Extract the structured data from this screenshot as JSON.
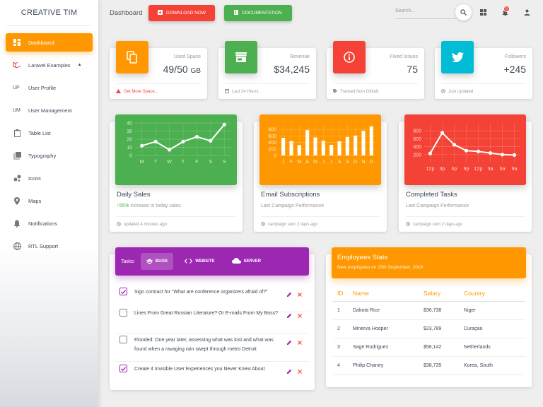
{
  "sidebar": {
    "brand": "CREATIVE TIM",
    "items": [
      {
        "label": "Dashboard",
        "icon": "dashboard-icon"
      },
      {
        "label": "Laravel Examples",
        "icon": "laravel-icon"
      },
      {
        "abbr": "UP",
        "label": "User Profile"
      },
      {
        "abbr": "UM",
        "label": "User Management"
      },
      {
        "label": "Table List",
        "icon": "clipboard-icon"
      },
      {
        "label": "Typography",
        "icon": "library-icon"
      },
      {
        "label": "Icons",
        "icon": "bubble-icon"
      },
      {
        "label": "Maps",
        "icon": "location-icon"
      },
      {
        "label": "Notifications",
        "icon": "bell-icon"
      },
      {
        "label": "RTL Support",
        "icon": "language-icon"
      }
    ]
  },
  "header": {
    "breadcrumb": "Dashboard",
    "download_label": "DOWNLOAD NOW",
    "docs_label": "DOCUMENTATION",
    "search_placeholder": "Search...",
    "notification_count": "5"
  },
  "stats": [
    {
      "category": "Used Space",
      "value": "49/50",
      "unit": "GB",
      "footer": "Get More Space...",
      "icon": "content-copy-icon",
      "color": "#ff9800"
    },
    {
      "category": "Revenue",
      "value": "$34,245",
      "footer": "Last 24 Hours",
      "icon": "store-icon",
      "color": "#4caf50"
    },
    {
      "category": "Fixed Issues",
      "value": "75",
      "footer": "Tracked from Github",
      "icon": "info-icon",
      "color": "#f44336"
    },
    {
      "category": "Followers",
      "value": "+245",
      "footer": "Just Updated",
      "icon": "twitter-icon",
      "color": "#00bcd4"
    }
  ],
  "charts": [
    {
      "title": "Daily Sales",
      "subtitle_pct": "55%",
      "subtitle_rest": " increase in today sales.",
      "footer": "updated 4 minutes ago",
      "color": "#4caf50",
      "chart_data": {
        "type": "line",
        "categories": [
          "M",
          "T",
          "W",
          "T",
          "F",
          "S",
          "S"
        ],
        "values": [
          12,
          17,
          7,
          17,
          23,
          18,
          38
        ],
        "ylim": [
          0,
          40
        ],
        "yticks": [
          "0",
          "10",
          "20",
          "30",
          "40"
        ],
        "grid": true
      }
    },
    {
      "title": "Email Subscriptions",
      "subtitle": "Last Campaign Performance",
      "footer": "campaign sent 2 days ago",
      "color": "#ff9800",
      "chart_data": {
        "type": "bar",
        "categories": [
          "J",
          "F",
          "M",
          "A",
          "M",
          "J",
          "J",
          "A",
          "S",
          "O",
          "N",
          "D"
        ],
        "values": [
          542,
          443,
          320,
          780,
          553,
          453,
          326,
          434,
          568,
          610,
          756,
          895
        ],
        "ylim": [
          0,
          1000
        ],
        "yticks": [
          "0",
          "200",
          "400",
          "600",
          "800"
        ],
        "grid": true
      }
    },
    {
      "title": "Completed Tasks",
      "subtitle": "Last Campaign Performance",
      "footer": "campaign sent 2 days ago",
      "color": "#f44336",
      "chart_data": {
        "type": "line",
        "categories": [
          "12p",
          "3p",
          "6p",
          "9p",
          "12p",
          "3a",
          "6a",
          "9a"
        ],
        "values": [
          230,
          750,
          450,
          300,
          280,
          240,
          200,
          190
        ],
        "ylim": [
          0,
          1000
        ],
        "yticks": [
          "200",
          "400",
          "600",
          "800"
        ],
        "grid": true
      }
    }
  ],
  "tasks": {
    "label": "Tasks:",
    "tabs": [
      {
        "label": "BUGS",
        "icon": "bug-icon"
      },
      {
        "label": "WEBSITE",
        "icon": "code-icon"
      },
      {
        "label": "SERVER",
        "icon": "cloud-icon"
      }
    ],
    "items": [
      {
        "text": "Sign contract for \"What are conference organizers afraid of?\"",
        "checked": true
      },
      {
        "text": "Lines From Great Russian Literature? Or E-mails From My Boss?",
        "checked": false
      },
      {
        "text": "Flooded: One year later, assessing what was lost and what was found when a ravaging rain swept through metro Detroit",
        "checked": false
      },
      {
        "text": "Create 4 Invisible User Experiences you Never Knew About",
        "checked": true
      }
    ]
  },
  "employees": {
    "title": "Employees Stats",
    "subtitle": "New employees on 15th September, 2016",
    "columns": [
      "ID",
      "Name",
      "Salary",
      "Country"
    ],
    "rows": [
      [
        "1",
        "Dakota Rice",
        "$36,738",
        "Niger"
      ],
      [
        "2",
        "Minerva Hooper",
        "$23,789",
        "Curaçao"
      ],
      [
        "3",
        "Sage Rodriguez",
        "$56,142",
        "Netherlands"
      ],
      [
        "4",
        "Philip Chaney",
        "$38,735",
        "Korea, South"
      ]
    ]
  }
}
